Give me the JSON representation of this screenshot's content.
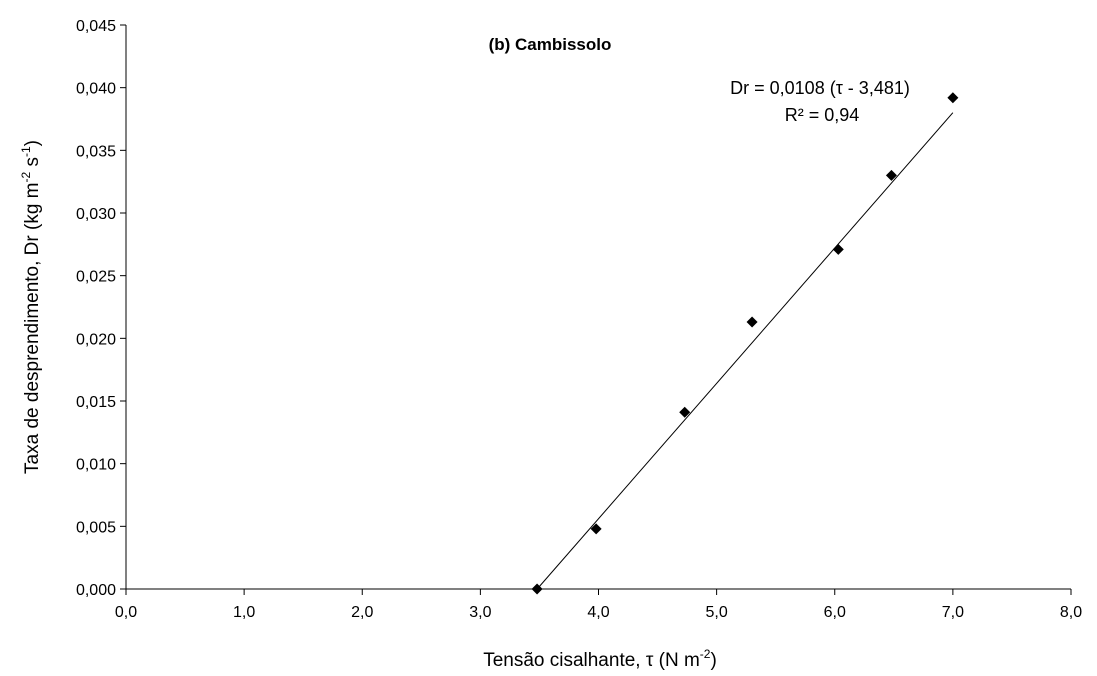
{
  "chart_data": {
    "type": "scatter",
    "title": "(b) Cambissolo",
    "xlabel": {
      "main": "Tensão cisalhante, τ (N m",
      "sup": "-2",
      "end": ")"
    },
    "ylabel": {
      "main": "Taxa de desprendimento, Dr (kg m",
      "sup1": "-2",
      "mid": " s",
      "sup2": "-1",
      "end": ")"
    },
    "xlim": [
      0,
      8
    ],
    "ylim": [
      0,
      0.045
    ],
    "x_ticks": [
      "0,0",
      "1,0",
      "2,0",
      "3,0",
      "4,0",
      "5,0",
      "6,0",
      "7,0",
      "8,0"
    ],
    "y_ticks": [
      "0,000",
      "0,005",
      "0,010",
      "0,015",
      "0,020",
      "0,025",
      "0,030",
      "0,035",
      "0,040",
      "0,045"
    ],
    "grid": false,
    "series": [
      {
        "points": [
          {
            "x": 3.48,
            "y": 0.0
          },
          {
            "x": 3.98,
            "y": 0.0048
          },
          {
            "x": 4.73,
            "y": 0.0141
          },
          {
            "x": 5.3,
            "y": 0.0213
          },
          {
            "x": 6.03,
            "y": 0.0271
          },
          {
            "x": 6.48,
            "y": 0.033
          },
          {
            "x": 7.0,
            "y": 0.0392
          }
        ]
      }
    ],
    "trendline": {
      "slope": 0.0108,
      "intercept_x": 3.481,
      "x_range": [
        3.481,
        7.0
      ]
    },
    "annotations": {
      "equation": "Dr = 0,0108 (τ - 3,481)",
      "r2": "R² = 0,94"
    }
  }
}
